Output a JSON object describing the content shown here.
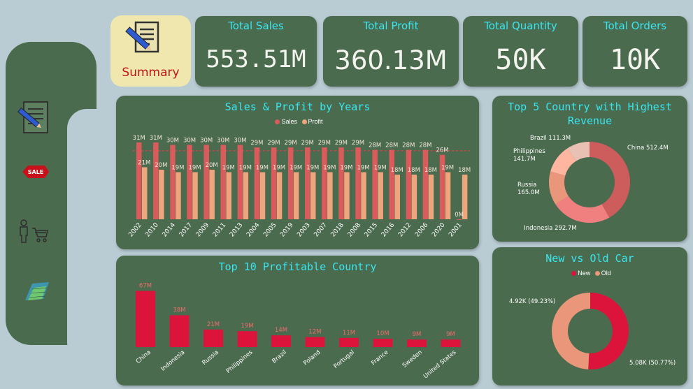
{
  "nav": {
    "summary_label": "Summary",
    "items": [
      {
        "icon": "report-icon"
      },
      {
        "icon": "sale-tag-icon",
        "label": "SALE"
      },
      {
        "icon": "customer-cart-icon"
      },
      {
        "icon": "chart-icon"
      }
    ]
  },
  "kpis": [
    {
      "title": "Total Sales",
      "value": "553.51M"
    },
    {
      "title": "Total Profit",
      "value": "360.13M"
    },
    {
      "title": "Total Quantity",
      "value": "50K"
    },
    {
      "title": "Total Orders",
      "value": "10K"
    }
  ],
  "colors": {
    "background": "#b9cbd3",
    "card": "#4b6b4f",
    "title": "#37e6f0",
    "sales": "#d95b5b",
    "profit": "#eda57e",
    "new": "#dc143c",
    "old": "#e9967a"
  },
  "chart_data": [
    {
      "type": "bar",
      "title": "Sales & Profit by Years",
      "categories": [
        "2002",
        "2010",
        "2014",
        "2017",
        "2009",
        "2011",
        "2013",
        "2004",
        "2005",
        "2019",
        "2003",
        "2007",
        "2018",
        "2008",
        "2015",
        "2016",
        "2012",
        "2006",
        "2020",
        "2001"
      ],
      "series": [
        {
          "name": "Sales",
          "values": [
            31,
            31,
            30,
            30,
            30,
            30,
            30,
            29,
            29,
            29,
            29,
            29,
            29,
            29,
            28,
            28,
            28,
            28,
            26,
            0
          ],
          "labels": [
            "31M",
            "31M",
            "30M",
            "30M",
            "30M",
            "30M",
            "30M",
            "29M",
            "29M",
            "29M",
            "29M",
            "29M",
            "29M",
            "29M",
            "28M",
            "28M",
            "28M",
            "28M",
            "26M",
            "0M"
          ]
        },
        {
          "name": "Profit",
          "values": [
            21,
            20,
            19,
            19,
            20,
            19,
            19,
            19,
            19,
            19,
            19,
            19,
            19,
            19,
            19,
            18,
            18,
            18,
            19,
            18
          ],
          "labels": [
            "21M",
            "20M",
            "19M",
            "19M",
            "20M",
            "19M",
            "19M",
            "19M",
            "19M",
            "19M",
            "19M",
            "19M",
            "19M",
            "19M",
            "19M",
            "18M",
            "18M",
            "18M",
            "19M",
            "18M"
          ]
        }
      ],
      "legend": "top-center"
    },
    {
      "type": "bar",
      "title": "Top 10 Profitable Country",
      "categories": [
        "China",
        "Indonesia",
        "Russia",
        "Philippines",
        "Brazil",
        "Poland",
        "Portugal",
        "France",
        "Sweden",
        "United States"
      ],
      "values": [
        67,
        38,
        21,
        19,
        14,
        12,
        11,
        10,
        9,
        9
      ],
      "labels": [
        "67M",
        "38M",
        "21M",
        "19M",
        "14M",
        "12M",
        "11M",
        "10M",
        "9M",
        "9M"
      ]
    },
    {
      "type": "pie",
      "title": "Top 5 Country with Highest Revenue",
      "categories": [
        "China",
        "Indonesia",
        "Russia",
        "Philippines",
        "Brazil"
      ],
      "values": [
        512.4,
        292.7,
        165.0,
        141.7,
        111.3
      ],
      "labels": [
        "China 512.4M",
        "Indonesia 292.7M",
        "Russia\n165.0M",
        "Philippines\n141.7M",
        "Brazil 111.3M"
      ],
      "colors": [
        "#cd5c5c",
        "#f08080",
        "#e9967a",
        "#ffb6a0",
        "#e8c0b4"
      ]
    },
    {
      "type": "pie",
      "title": "New vs Old Car",
      "categories": [
        "New",
        "Old"
      ],
      "values": [
        5.08,
        4.92
      ],
      "labels": [
        "5.08K (50.77%)",
        "4.92K (49.23%)"
      ],
      "colors": [
        "#dc143c",
        "#e9967a"
      ],
      "legend": "top-center"
    }
  ]
}
